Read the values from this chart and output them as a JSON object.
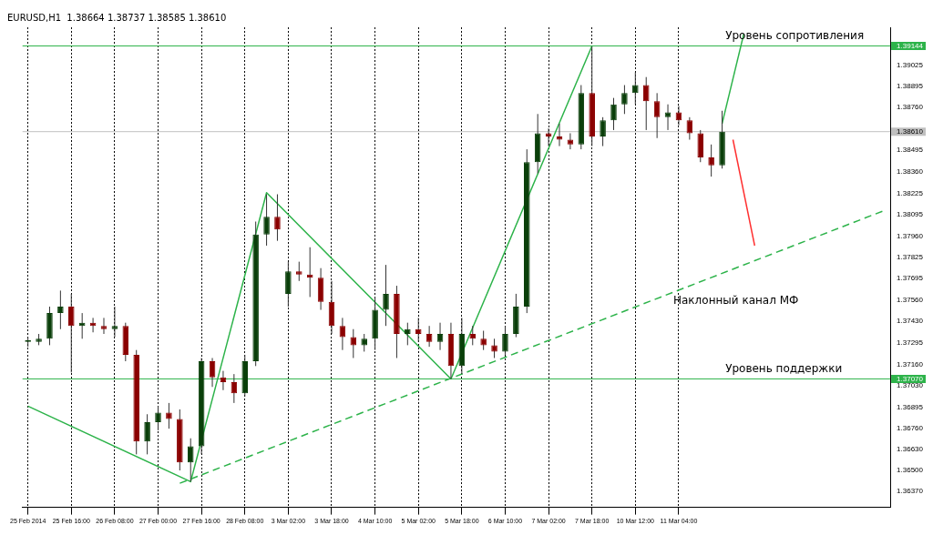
{
  "chart_data": {
    "type": "candlestick",
    "title": "EURUSD,H1  1.38664 1.38737 1.38585 1.38610",
    "categories": [
      "25 Feb 2014",
      null,
      null,
      null,
      "25 Feb 16:00",
      null,
      null,
      null,
      "26 Feb 08:00",
      null,
      null,
      null,
      "27 Feb 00:00",
      null,
      null,
      null,
      "27 Feb 16:00",
      null,
      null,
      null,
      "28 Feb 08:00",
      null,
      null,
      null,
      "3 Mar 02:00",
      null,
      null,
      null,
      "3 Mar 18:00",
      null,
      null,
      null,
      "4 Mar 10:00",
      null,
      null,
      null,
      "5 Mar 02:00",
      null,
      null,
      null,
      "5 Mar 18:00",
      null,
      null,
      null,
      "6 Mar 10:00",
      null,
      null,
      null,
      "7 Mar 02:00",
      null,
      null,
      null,
      "7 Mar 18:00",
      null,
      null,
      null,
      "10 Mar 12:00",
      null,
      null,
      null,
      "11 Mar 04:00",
      null,
      null,
      null,
      null,
      null,
      null,
      null,
      null,
      null,
      null,
      null,
      null,
      null,
      null,
      null,
      null,
      null,
      null,
      null
    ],
    "ohlc": [
      [
        1.373,
        1.3733,
        1.3727,
        1.3731
      ],
      [
        1.373,
        1.3735,
        1.3728,
        1.3732
      ],
      [
        1.3732,
        1.3752,
        1.3728,
        1.3748
      ],
      [
        1.3748,
        1.3762,
        1.3738,
        1.3752
      ],
      [
        1.3752,
        1.376,
        1.3711,
        1.374
      ],
      [
        1.374,
        1.3748,
        1.3732,
        1.3742
      ],
      [
        1.3742,
        1.3745,
        1.3736,
        1.374
      ],
      [
        1.374,
        1.3745,
        1.3735,
        1.3738
      ],
      [
        1.3738,
        1.3752,
        1.3733,
        1.374
      ],
      [
        1.374,
        1.3742,
        1.3718,
        1.3722
      ],
      [
        1.3722,
        1.3725,
        1.366,
        1.3668
      ],
      [
        1.3668,
        1.3685,
        1.366,
        1.368
      ],
      [
        1.368,
        1.369,
        1.3675,
        1.3686
      ],
      [
        1.3686,
        1.3692,
        1.3676,
        1.3682
      ],
      [
        1.3682,
        1.3688,
        1.365,
        1.3655
      ],
      [
        1.3655,
        1.367,
        1.3643,
        1.3665
      ],
      [
        1.3665,
        1.372,
        1.366,
        1.3718
      ],
      [
        1.3718,
        1.372,
        1.3702,
        1.3708
      ],
      [
        1.3708,
        1.3712,
        1.37,
        1.3705
      ],
      [
        1.3705,
        1.371,
        1.3692,
        1.3698
      ],
      [
        1.3698,
        1.3722,
        1.3696,
        1.3718
      ],
      [
        1.3718,
        1.3805,
        1.3715,
        1.3797
      ],
      [
        1.3797,
        1.3822,
        1.379,
        1.3808
      ],
      [
        1.3808,
        1.3822,
        1.3793,
        1.38
      ],
      [
        1.376,
        1.378,
        1.3752,
        1.3774
      ],
      [
        1.3774,
        1.378,
        1.3768,
        1.3772
      ],
      [
        1.3772,
        1.3789,
        1.3758,
        1.377
      ],
      [
        1.377,
        1.3776,
        1.375,
        1.3755
      ],
      [
        1.3755,
        1.3768,
        1.3735,
        1.374
      ],
      [
        1.374,
        1.3745,
        1.3725,
        1.3733
      ],
      [
        1.3733,
        1.3738,
        1.372,
        1.3728
      ],
      [
        1.3728,
        1.3735,
        1.3724,
        1.3732
      ],
      [
        1.3732,
        1.3758,
        1.3725,
        1.375
      ],
      [
        1.375,
        1.3778,
        1.374,
        1.376
      ],
      [
        1.376,
        1.3765,
        1.372,
        1.3735
      ],
      [
        1.3735,
        1.3742,
        1.3728,
        1.3738
      ],
      [
        1.3738,
        1.3745,
        1.373,
        1.3735
      ],
      [
        1.3735,
        1.374,
        1.3727,
        1.373
      ],
      [
        1.373,
        1.3742,
        1.3725,
        1.3735
      ],
      [
        1.3735,
        1.3742,
        1.3707,
        1.3715
      ],
      [
        1.3715,
        1.3745,
        1.371,
        1.3735
      ],
      [
        1.3735,
        1.374,
        1.3728,
        1.3732
      ],
      [
        1.3732,
        1.3737,
        1.3725,
        1.3728
      ],
      [
        1.3728,
        1.3732,
        1.372,
        1.3724
      ],
      [
        1.3724,
        1.374,
        1.3722,
        1.3735
      ],
      [
        1.3735,
        1.376,
        1.3733,
        1.3752
      ],
      [
        1.3752,
        1.385,
        1.3748,
        1.3842
      ],
      [
        1.3842,
        1.3872,
        1.3835,
        1.386
      ],
      [
        1.386,
        1.3863,
        1.3852,
        1.3858
      ],
      [
        1.3858,
        1.3866,
        1.3852,
        1.3856
      ],
      [
        1.3856,
        1.386,
        1.385,
        1.3853
      ],
      [
        1.3853,
        1.389,
        1.385,
        1.3885
      ],
      [
        1.3885,
        1.3914,
        1.3852,
        1.3858
      ],
      [
        1.3858,
        1.387,
        1.3852,
        1.3868
      ],
      [
        1.3868,
        1.3882,
        1.3862,
        1.3878
      ],
      [
        1.3878,
        1.389,
        1.3872,
        1.3885
      ],
      [
        1.3885,
        1.3898,
        1.3878,
        1.389
      ],
      [
        1.389,
        1.3895,
        1.3862,
        1.388
      ],
      [
        1.388,
        1.3885,
        1.3857,
        1.387
      ],
      [
        1.387,
        1.3878,
        1.3862,
        1.3873
      ],
      [
        1.3873,
        1.3877,
        1.3865,
        1.3868
      ],
      [
        1.3868,
        1.387,
        1.3856,
        1.386
      ],
      [
        1.386,
        1.3862,
        1.3842,
        1.3845
      ],
      [
        1.3845,
        1.3853,
        1.3833,
        1.384
      ],
      [
        1.384,
        1.3874,
        1.3838,
        1.3861
      ],
      null,
      null,
      null,
      null,
      null,
      null,
      null,
      null,
      null,
      null,
      null,
      null,
      null,
      null,
      null
    ],
    "series": [
      {
        "type": "line",
        "color": "#2db34a",
        "values": [
          1.369,
          null,
          null,
          null,
          null,
          null,
          null,
          null,
          null,
          null,
          null,
          null,
          null,
          null,
          null,
          1.3643,
          null,
          null,
          null,
          null,
          null,
          null,
          1.3823,
          null,
          null,
          null,
          null,
          null,
          null,
          null,
          null,
          null,
          null,
          null,
          null,
          null,
          null,
          null,
          null,
          1.3707,
          null,
          null,
          null,
          null,
          null,
          null,
          null,
          null,
          null,
          null,
          null,
          null,
          1.39144,
          null,
          null,
          null,
          null,
          null,
          null,
          null,
          null,
          null,
          null,
          null,
          null,
          null,
          null,
          null,
          null,
          null,
          null,
          null,
          null,
          null,
          null,
          null,
          null,
          null,
          null,
          null
        ]
      },
      {
        "type": "line",
        "color": "#2db34a",
        "line_style": "dashed",
        "values": [
          null,
          null,
          null,
          null,
          null,
          null,
          null,
          null,
          null,
          null,
          null,
          null,
          null,
          null,
          1.3642,
          null,
          null,
          null,
          null,
          null,
          null,
          null,
          null,
          null,
          null,
          null,
          null,
          null,
          null,
          null,
          null,
          null,
          null,
          null,
          null,
          null,
          null,
          null,
          null,
          null,
          null,
          null,
          null,
          null,
          null,
          null,
          null,
          null,
          null,
          null,
          null,
          null,
          null,
          null,
          null,
          null,
          null,
          null,
          null,
          null,
          null,
          null,
          null,
          null,
          null,
          null,
          null,
          null,
          null,
          null,
          null,
          null,
          null,
          null,
          null,
          null,
          null,
          null,
          null,
          1.3812
        ]
      },
      {
        "type": "line",
        "color": "#2db34a",
        "values": [
          null,
          null,
          null,
          null,
          null,
          null,
          null,
          null,
          null,
          null,
          null,
          null,
          null,
          null,
          null,
          null,
          null,
          null,
          null,
          null,
          null,
          null,
          null,
          null,
          null,
          null,
          null,
          null,
          null,
          null,
          null,
          null,
          null,
          null,
          null,
          null,
          null,
          null,
          null,
          null,
          null,
          null,
          null,
          null,
          null,
          null,
          null,
          null,
          null,
          null,
          null,
          null,
          null,
          null,
          null,
          null,
          null,
          null,
          null,
          null,
          null,
          null,
          null,
          null,
          1.3866,
          null,
          1.3922,
          null,
          null,
          null,
          null,
          null,
          null,
          null,
          null,
          null,
          null,
          null,
          null,
          null
        ]
      },
      {
        "type": "line",
        "color": "#ff3030",
        "values": [
          null,
          null,
          null,
          null,
          null,
          null,
          null,
          null,
          null,
          null,
          null,
          null,
          null,
          null,
          null,
          null,
          null,
          null,
          null,
          null,
          null,
          null,
          null,
          null,
          null,
          null,
          null,
          null,
          null,
          null,
          null,
          null,
          null,
          null,
          null,
          null,
          null,
          null,
          null,
          null,
          null,
          null,
          null,
          null,
          null,
          null,
          null,
          null,
          null,
          null,
          null,
          null,
          null,
          null,
          null,
          null,
          null,
          null,
          null,
          null,
          null,
          null,
          null,
          null,
          null,
          1.3856,
          null,
          1.379,
          null,
          null,
          null,
          null,
          null,
          null,
          null,
          null,
          null,
          null,
          null,
          null
        ]
      }
    ],
    "ylim": [
      1.3627,
      1.3926
    ],
    "yticks": [
      1.39144,
      1.39025,
      1.38895,
      {
        "value": 1.3876,
        "label": "1.38760"
      },
      {
        "value": 1.3861,
        "label": "1.38610"
      },
      1.38495,
      {
        "value": 1.3836,
        "label": "1.38360"
      },
      1.38225,
      1.38095,
      {
        "value": 1.3796,
        "label": "1.37960"
      },
      1.37825,
      1.37695,
      {
        "value": 1.3756,
        "label": "1.37560"
      },
      {
        "value": 1.3743,
        "label": "1.37430"
      },
      1.37295,
      {
        "value": 1.3716,
        "label": "1.37160"
      },
      {
        "value": 1.3707,
        "label": "1.37070"
      },
      {
        "value": 1.3703,
        "label": "1.37030"
      },
      1.36895,
      {
        "value": 1.3676,
        "label": "1.36760"
      },
      {
        "value": 1.3663,
        "label": "1.36630"
      },
      {
        "value": 1.365,
        "label": "1.36500"
      },
      {
        "value": 1.3637,
        "label": "1.36370"
      }
    ],
    "ref_lines": [
      {
        "axis": "y",
        "value": 1.39144,
        "label": "Уровень сопротивления",
        "color": "#2db34a"
      },
      {
        "axis": "y",
        "value": 1.3707,
        "label": "Уровень поддержки",
        "color": "#2db34a"
      },
      {
        "axis": "y",
        "value": 1.3861,
        "color": "#c0c0c0"
      }
    ],
    "annotations": [
      "Наклонный канал МФ"
    ],
    "grid": "x",
    "legend": false
  }
}
